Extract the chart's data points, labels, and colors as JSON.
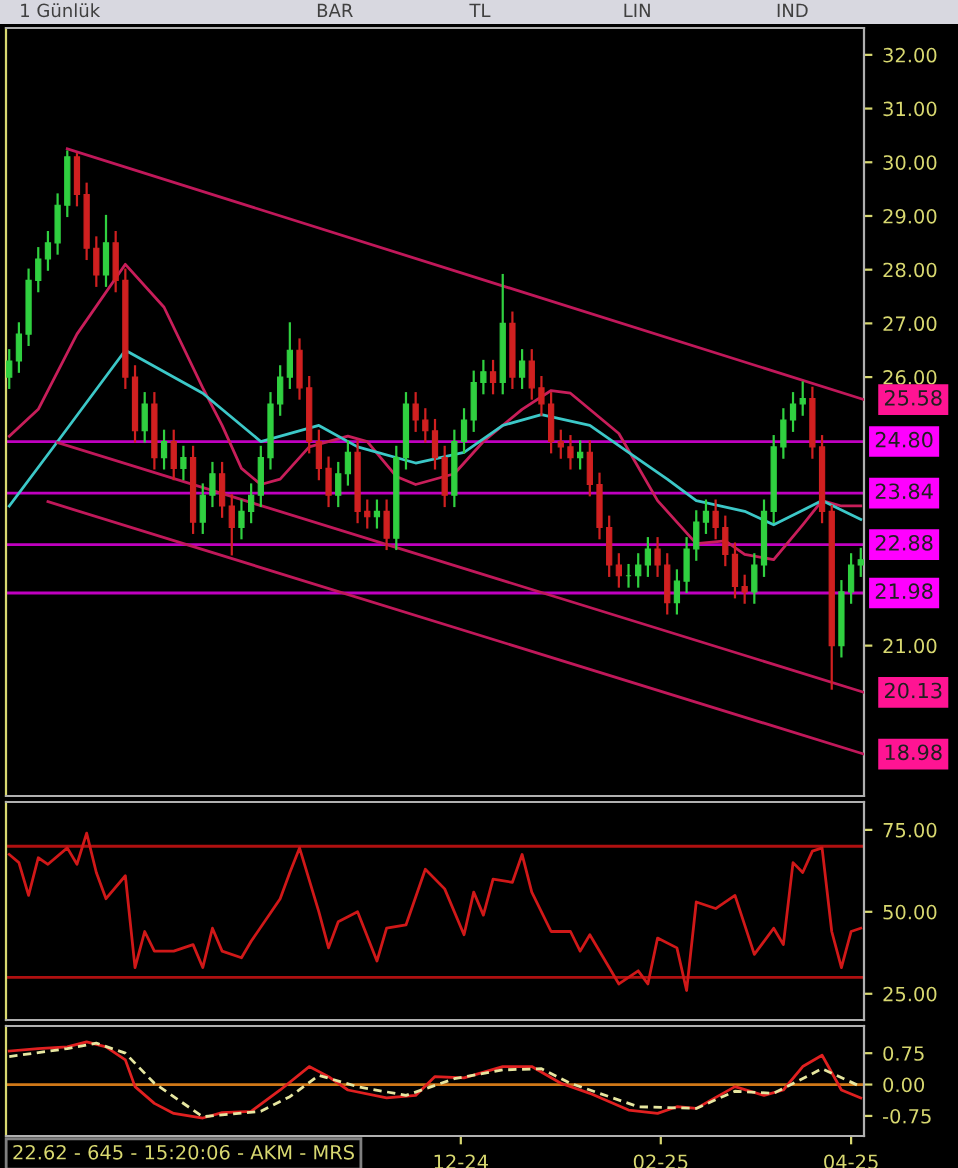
{
  "chart_data": [
    {
      "type": "candlestick",
      "title": "1 Günlük",
      "annotations": [
        "BAR",
        "TL",
        "LIN",
        "IND",
        {
          "text": "25.58",
          "x": "2025-04-05",
          "y": 25.58
        },
        {
          "text": "20.13",
          "x": "2025-04-05",
          "y": 20.13
        },
        {
          "text": "18.98",
          "x": "2025-04-05",
          "y": 18.98
        }
      ],
      "x": [
        "2024-07-14",
        "2024-07-17",
        "2024-07-20",
        "2024-07-23",
        "2024-07-26",
        "2024-07-29",
        "2024-08-01",
        "2024-08-04",
        "2024-08-07",
        "2024-08-10",
        "2024-08-13",
        "2024-08-16",
        "2024-08-19",
        "2024-08-22",
        "2024-08-25",
        "2024-08-28",
        "2024-08-31",
        "2024-09-03",
        "2024-09-06",
        "2024-09-09",
        "2024-09-12",
        "2024-09-15",
        "2024-09-18",
        "2024-09-21",
        "2024-09-24",
        "2024-09-27",
        "2024-09-30",
        "2024-10-03",
        "2024-10-06",
        "2024-10-09",
        "2024-10-12",
        "2024-10-15",
        "2024-10-18",
        "2024-10-21",
        "2024-10-24",
        "2024-10-27",
        "2024-10-30",
        "2024-11-02",
        "2024-11-05",
        "2024-11-08",
        "2024-11-11",
        "2024-11-14",
        "2024-11-17",
        "2024-11-20",
        "2024-11-23",
        "2024-11-26",
        "2024-11-29",
        "2024-12-02",
        "2024-12-05",
        "2024-12-08",
        "2024-12-11",
        "2024-12-14",
        "2024-12-17",
        "2024-12-20",
        "2024-12-23",
        "2024-12-26",
        "2024-12-29",
        "2025-01-01",
        "2025-01-04",
        "2025-01-07",
        "2025-01-10",
        "2025-01-13",
        "2025-01-16",
        "2025-01-19",
        "2025-01-22",
        "2025-01-25",
        "2025-01-28",
        "2025-01-31",
        "2025-02-03",
        "2025-02-06",
        "2025-02-09",
        "2025-02-12",
        "2025-02-15",
        "2025-02-18",
        "2025-02-21",
        "2025-02-24",
        "2025-02-27",
        "2025-03-02",
        "2025-03-05",
        "2025-03-08",
        "2025-03-11",
        "2025-03-14",
        "2025-03-17",
        "2025-03-20",
        "2025-03-23",
        "2025-03-26",
        "2025-03-29",
        "2025-04-01",
        "2025-04-04"
      ],
      "ohlc": [
        [
          26.0,
          26.5,
          25.8,
          26.3
        ],
        [
          26.3,
          27.0,
          26.1,
          26.8
        ],
        [
          26.8,
          28.0,
          26.6,
          27.8
        ],
        [
          27.8,
          28.4,
          27.6,
          28.2
        ],
        [
          28.2,
          28.7,
          28.0,
          28.5
        ],
        [
          28.5,
          29.4,
          28.3,
          29.2
        ],
        [
          29.2,
          30.2,
          29.0,
          30.1
        ],
        [
          30.1,
          30.15,
          29.2,
          29.4
        ],
        [
          29.4,
          29.6,
          28.2,
          28.4
        ],
        [
          28.4,
          28.6,
          27.7,
          27.9
        ],
        [
          27.9,
          29.0,
          27.7,
          28.5
        ],
        [
          28.5,
          28.7,
          27.6,
          27.8
        ],
        [
          27.8,
          28.0,
          25.8,
          26.0
        ],
        [
          26.0,
          26.2,
          24.8,
          25.0
        ],
        [
          25.0,
          25.7,
          24.8,
          25.5
        ],
        [
          25.5,
          25.7,
          24.3,
          24.5
        ],
        [
          24.5,
          25.0,
          24.3,
          24.8
        ],
        [
          24.8,
          25.0,
          24.1,
          24.3
        ],
        [
          24.3,
          24.7,
          24.1,
          24.5
        ],
        [
          24.5,
          24.7,
          23.1,
          23.3
        ],
        [
          23.3,
          24.0,
          23.1,
          23.8
        ],
        [
          23.8,
          24.4,
          23.6,
          24.2
        ],
        [
          24.2,
          24.4,
          23.4,
          23.6
        ],
        [
          23.6,
          23.8,
          22.7,
          23.2
        ],
        [
          23.2,
          23.7,
          23.0,
          23.5
        ],
        [
          23.5,
          24.0,
          23.3,
          23.8
        ],
        [
          23.8,
          24.7,
          23.6,
          24.5
        ],
        [
          24.5,
          25.7,
          24.3,
          25.5
        ],
        [
          25.5,
          26.2,
          25.3,
          26.0
        ],
        [
          26.0,
          27.0,
          25.8,
          26.5
        ],
        [
          26.5,
          26.7,
          25.6,
          25.8
        ],
        [
          25.8,
          26.0,
          24.6,
          24.8
        ],
        [
          24.8,
          25.0,
          24.1,
          24.3
        ],
        [
          24.3,
          24.5,
          23.6,
          23.8
        ],
        [
          23.8,
          24.4,
          23.6,
          24.2
        ],
        [
          24.2,
          24.8,
          24.0,
          24.6
        ],
        [
          24.6,
          24.8,
          23.3,
          23.5
        ],
        [
          23.5,
          23.7,
          23.2,
          23.4
        ],
        [
          23.4,
          23.7,
          23.2,
          23.5
        ],
        [
          23.5,
          23.7,
          22.8,
          23.0
        ],
        [
          23.0,
          24.7,
          22.8,
          24.5
        ],
        [
          24.5,
          25.7,
          24.3,
          25.5
        ],
        [
          25.5,
          25.7,
          25.0,
          25.2
        ],
        [
          25.2,
          25.4,
          24.8,
          25.0
        ],
        [
          25.0,
          25.2,
          24.3,
          24.5
        ],
        [
          24.5,
          24.7,
          23.6,
          23.8
        ],
        [
          23.8,
          25.0,
          23.6,
          24.8
        ],
        [
          24.8,
          25.4,
          24.6,
          25.2
        ],
        [
          25.2,
          26.1,
          25.0,
          25.9
        ],
        [
          25.9,
          26.3,
          25.7,
          26.1
        ],
        [
          26.1,
          26.3,
          25.7,
          25.9
        ],
        [
          25.9,
          27.9,
          25.7,
          27.0
        ],
        [
          27.0,
          27.2,
          25.8,
          26.0
        ],
        [
          26.0,
          26.5,
          25.8,
          26.3
        ],
        [
          26.3,
          26.5,
          25.6,
          25.8
        ],
        [
          25.8,
          26.0,
          25.3,
          25.5
        ],
        [
          25.5,
          25.7,
          24.6,
          24.8
        ],
        [
          24.8,
          25.0,
          24.5,
          24.7
        ],
        [
          24.7,
          24.9,
          24.3,
          24.5
        ],
        [
          24.5,
          24.8,
          24.3,
          24.6
        ],
        [
          24.6,
          24.8,
          23.8,
          24.0
        ],
        [
          24.0,
          24.2,
          23.0,
          23.2
        ],
        [
          23.2,
          23.4,
          22.3,
          22.5
        ],
        [
          22.5,
          22.7,
          22.1,
          22.3
        ],
        [
          22.3,
          22.5,
          22.1,
          22.3
        ],
        [
          22.3,
          22.7,
          22.1,
          22.5
        ],
        [
          22.5,
          23.0,
          22.3,
          22.8
        ],
        [
          22.8,
          23.0,
          22.3,
          22.5
        ],
        [
          22.5,
          22.7,
          21.6,
          21.8
        ],
        [
          21.8,
          22.4,
          21.6,
          22.2
        ],
        [
          22.2,
          23.0,
          22.0,
          22.8
        ],
        [
          22.8,
          23.5,
          22.6,
          23.3
        ],
        [
          23.3,
          23.7,
          23.1,
          23.5
        ],
        [
          23.5,
          23.7,
          23.0,
          23.2
        ],
        [
          23.2,
          23.4,
          22.5,
          22.7
        ],
        [
          22.7,
          22.9,
          21.9,
          22.1
        ],
        [
          22.1,
          22.3,
          21.8,
          22.0
        ],
        [
          22.0,
          22.7,
          21.8,
          22.5
        ],
        [
          22.5,
          23.7,
          22.3,
          23.5
        ],
        [
          23.5,
          24.9,
          23.3,
          24.7
        ],
        [
          24.7,
          25.4,
          24.5,
          25.2
        ],
        [
          25.2,
          25.7,
          25.0,
          25.5
        ],
        [
          25.5,
          25.9,
          25.3,
          25.6
        ],
        [
          25.6,
          25.8,
          24.5,
          24.7
        ],
        [
          24.7,
          24.9,
          23.3,
          23.5
        ],
        [
          23.5,
          23.6,
          20.2,
          21.0
        ],
        [
          21.0,
          22.2,
          20.8,
          22.0
        ],
        [
          22.0,
          22.7,
          21.8,
          22.5
        ],
        [
          22.5,
          22.8,
          22.3,
          22.6
        ]
      ],
      "series": [
        {
          "type": "line",
          "color": "#c81e5a",
          "x": [
            "2024-07-14",
            "2024-07-23",
            "2024-08-04",
            "2024-08-19",
            "2024-08-31",
            "2024-09-12",
            "2024-09-18",
            "2024-09-24",
            "2024-09-30",
            "2024-10-06",
            "2024-10-15",
            "2024-10-27",
            "2024-11-02",
            "2024-11-11",
            "2024-11-17",
            "2024-11-29",
            "2024-12-08",
            "2024-12-20",
            "2024-12-29",
            "2025-01-04",
            "2025-01-19",
            "2025-01-31",
            "2025-02-06",
            "2025-02-12",
            "2025-02-21",
            "2025-02-27",
            "2025-03-08",
            "2025-03-17",
            "2025-03-23",
            "2025-03-29",
            "2025-04-04"
          ],
          "values": [
            24.9,
            25.4,
            26.8,
            28.1,
            27.3,
            25.8,
            25.1,
            24.3,
            24.0,
            24.1,
            24.7,
            24.9,
            24.8,
            24.15,
            24.0,
            24.2,
            24.8,
            25.4,
            25.75,
            25.7,
            24.95,
            23.7,
            23.3,
            22.9,
            22.95,
            22.7,
            22.6,
            23.25,
            23.7,
            23.6,
            23.6
          ]
        },
        {
          "type": "line",
          "color": "#3cc8c8",
          "x": [
            "2024-07-14",
            "2024-07-29",
            "2024-08-19",
            "2024-09-12",
            "2024-09-30",
            "2024-10-18",
            "2024-10-30",
            "2024-11-17",
            "2024-12-02",
            "2024-12-14",
            "2024-12-26",
            "2025-01-10",
            "2025-01-22",
            "2025-02-03",
            "2025-02-12",
            "2025-02-27",
            "2025-03-08",
            "2025-03-23",
            "2025-04-04"
          ],
          "values": [
            23.6,
            24.8,
            26.5,
            25.7,
            24.8,
            25.1,
            24.7,
            24.4,
            24.6,
            25.1,
            25.3,
            25.1,
            24.6,
            24.1,
            23.7,
            23.5,
            23.25,
            23.7,
            23.35
          ]
        },
        {
          "type": "line",
          "color": "#c0185a",
          "x": [
            "2024-08-01",
            "2025-04-05"
          ],
          "values": [
            30.25,
            25.58
          ]
        },
        {
          "type": "line",
          "color": "#c0185a",
          "x": [
            "2024-07-29",
            "2025-04-05"
          ],
          "values": [
            24.78,
            20.13
          ]
        },
        {
          "type": "line",
          "color": "#c0185a",
          "x": [
            "2024-07-26",
            "2025-04-05"
          ],
          "values": [
            23.68,
            18.98
          ]
        }
      ],
      "ref_lines": [
        {
          "axis": "y",
          "value": 24.8,
          "label": "24.80",
          "color": "#c000c0"
        },
        {
          "axis": "y",
          "value": 23.84,
          "label": "23.84",
          "color": "#c000c0"
        },
        {
          "axis": "y",
          "value": 22.88,
          "label": "22.88",
          "color": "#c000c0"
        },
        {
          "axis": "y",
          "value": 21.98,
          "label": "21.98",
          "color": "#c000c0"
        }
      ],
      "xlim": [
        "2024-07-13",
        "2025-04-05"
      ],
      "ylim": [
        18.2,
        32.5
      ],
      "yticks": [
        {
          "value": 21,
          "label": "21.00"
        },
        {
          "value": 26,
          "label": "26.00"
        },
        {
          "value": 27,
          "label": "27.00"
        },
        {
          "value": 28,
          "label": "28.00"
        },
        {
          "value": 29,
          "label": "29.00"
        },
        {
          "value": 30,
          "label": "30.00"
        },
        {
          "value": 31,
          "label": "31.00"
        },
        {
          "value": 32,
          "label": "32.00"
        }
      ],
      "tick_labels": "y"
    },
    {
      "type": "line",
      "series": [
        {
          "color": "#d01818",
          "x": [
            "2024-07-14",
            "2024-07-17",
            "2024-07-20",
            "2024-07-23",
            "2024-07-26",
            "2024-08-01",
            "2024-08-04",
            "2024-08-07",
            "2024-08-10",
            "2024-08-13",
            "2024-08-19",
            "2024-08-22",
            "2024-08-25",
            "2024-08-28",
            "2024-09-03",
            "2024-09-09",
            "2024-09-12",
            "2024-09-15",
            "2024-09-18",
            "2024-09-24",
            "2024-09-27",
            "2024-10-06",
            "2024-10-09",
            "2024-10-12",
            "2024-10-18",
            "2024-10-21",
            "2024-10-24",
            "2024-10-30",
            "2024-11-05",
            "2024-11-08",
            "2024-11-14",
            "2024-11-20",
            "2024-11-26",
            "2024-12-02",
            "2024-12-05",
            "2024-12-08",
            "2024-12-11",
            "2024-12-17",
            "2024-12-20",
            "2024-12-23",
            "2024-12-29",
            "2025-01-04",
            "2025-01-07",
            "2025-01-10",
            "2025-01-16",
            "2025-01-19",
            "2025-01-25",
            "2025-01-28",
            "2025-01-31",
            "2025-02-06",
            "2025-02-09",
            "2025-02-12",
            "2025-02-18",
            "2025-02-24",
            "2025-02-27",
            "2025-03-02",
            "2025-03-08",
            "2025-03-11",
            "2025-03-14",
            "2025-03-17",
            "2025-03-20",
            "2025-03-23",
            "2025-03-26",
            "2025-03-29",
            "2025-04-01",
            "2025-04-04"
          ],
          "values": [
            67.5,
            65,
            55,
            66.5,
            64.5,
            69.5,
            64.5,
            74,
            62,
            54,
            61,
            33,
            44,
            38,
            38,
            40,
            33,
            45,
            38,
            36,
            41,
            54,
            62,
            69.5,
            50,
            39,
            47,
            50,
            35,
            45,
            46,
            63,
            57,
            43,
            56,
            49,
            60,
            59,
            67.5,
            56,
            44,
            44,
            38,
            43,
            33,
            28,
            32,
            28,
            42,
            39,
            26,
            53,
            51,
            55,
            46,
            37,
            45,
            40,
            65,
            62,
            68.5,
            69.5,
            44,
            33,
            44,
            45
          ]
        }
      ],
      "ref_lines": [
        {
          "axis": "y",
          "value": 70,
          "color": "#b01010"
        },
        {
          "axis": "y",
          "value": 30,
          "color": "#b01010"
        }
      ],
      "xlim": [
        "2024-07-13",
        "2025-04-05"
      ],
      "ylim": [
        17,
        83.5
      ],
      "yticks": [
        {
          "value": 25,
          "label": "25.00"
        },
        {
          "value": 50,
          "label": "50.00"
        },
        {
          "value": 75,
          "label": "75.00"
        }
      ],
      "tick_labels": "y"
    },
    {
      "type": "line",
      "annotations": [
        "22.62 - 645 - 15:20:06 - AKM - MRS"
      ],
      "series": [
        {
          "color": "#e02020",
          "x": [
            "2024-07-14",
            "2024-07-23",
            "2024-08-01",
            "2024-08-07",
            "2024-08-13",
            "2024-08-19",
            "2024-08-22",
            "2024-08-28",
            "2024-09-03",
            "2024-09-12",
            "2024-09-18",
            "2024-09-27",
            "2024-10-06",
            "2024-10-15",
            "2024-10-21",
            "2024-10-27",
            "2024-11-08",
            "2024-11-17",
            "2024-11-23",
            "2024-12-02",
            "2024-12-14",
            "2024-12-23",
            "2025-01-01",
            "2025-01-10",
            "2025-01-22",
            "2025-01-31",
            "2025-02-06",
            "2025-02-12",
            "2025-02-24",
            "2025-03-05",
            "2025-03-11",
            "2025-03-17",
            "2025-03-23",
            "2025-03-29",
            "2025-04-04"
          ],
          "values": [
            0.8,
            0.86,
            0.9,
            1.02,
            0.9,
            0.59,
            -0.05,
            -0.45,
            -0.69,
            -0.8,
            -0.67,
            -0.64,
            -0.13,
            0.43,
            0.19,
            -0.13,
            -0.32,
            -0.26,
            0.19,
            0.16,
            0.43,
            0.43,
            0.03,
            -0.21,
            -0.61,
            -0.69,
            -0.53,
            -0.57,
            -0.05,
            -0.26,
            -0.13,
            0.43,
            0.7,
            -0.13,
            -0.32
          ]
        },
        {
          "color": "#e6e6a0",
          "line_style": "dashed",
          "x": [
            "2024-07-14",
            "2024-08-01",
            "2024-08-10",
            "2024-08-19",
            "2024-08-28",
            "2024-09-12",
            "2024-09-30",
            "2024-10-09",
            "2024-10-18",
            "2024-10-30",
            "2024-11-14",
            "2024-11-29",
            "2024-12-14",
            "2024-12-26",
            "2025-01-04",
            "2025-01-25",
            "2025-02-12",
            "2025-02-24",
            "2025-03-08",
            "2025-03-23",
            "2025-04-04"
          ],
          "values": [
            0.67,
            0.86,
            0.99,
            0.75,
            0.03,
            -0.77,
            -0.64,
            -0.29,
            0.22,
            -0.05,
            -0.26,
            0.14,
            0.35,
            0.38,
            0.03,
            -0.53,
            -0.57,
            -0.16,
            -0.21,
            0.38,
            -0.05
          ]
        }
      ],
      "ref_lines": [
        {
          "axis": "y",
          "value": 0,
          "color": "#d07818"
        }
      ],
      "xlim": [
        "2024-07-13",
        "2025-04-05"
      ],
      "ylim": [
        -1.23,
        1.4
      ],
      "xticks": [
        {
          "value": "2024-12-01",
          "label": "12-24"
        },
        {
          "value": "2025-02-01",
          "label": "02-25"
        },
        {
          "value": "2025-04-01",
          "label": "04-25"
        }
      ],
      "yticks": [
        {
          "value": 0.75,
          "label": "0.75"
        },
        {
          "value": 0,
          "label": "0.00"
        },
        {
          "value": -0.75,
          "label": "-0.75"
        }
      ]
    }
  ]
}
